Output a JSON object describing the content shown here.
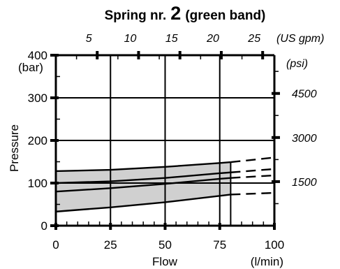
{
  "chart_data": {
    "type": "area",
    "title": {
      "prefix": "Spring nr.",
      "number": "2",
      "suffix": "(green band)"
    },
    "xlabel": "Flow",
    "xunit": "(l/min)",
    "ylabel": "Pressure",
    "yunit": "(bar)",
    "xlim": [
      0,
      100
    ],
    "ylim": [
      0,
      400
    ],
    "x_ticks": [
      0,
      25,
      50,
      75,
      100
    ],
    "y_ticks": [
      0,
      100,
      200,
      300,
      400
    ],
    "top_axis": {
      "unit": "(US gpm)",
      "ticks": [
        5,
        10,
        15,
        20,
        25
      ]
    },
    "right_axis": {
      "unit": "(psi)",
      "ticks": [
        1500,
        3000,
        4500
      ]
    },
    "grid_x": [
      25,
      50,
      75
    ],
    "grid_y": [
      100,
      200,
      300
    ],
    "band": {
      "fill": "#d0d0d0",
      "upper": {
        "x": [
          0,
          25,
          50,
          75,
          80
        ],
        "y": [
          128,
          131,
          138,
          147,
          149
        ]
      },
      "lower": {
        "x": [
          0,
          25,
          50,
          75,
          80
        ],
        "y": [
          33,
          43,
          55,
          70,
          73
        ]
      }
    },
    "series": [
      {
        "x": [
          0,
          25,
          50,
          75,
          80,
          100
        ],
        "y": [
          128,
          131,
          138,
          147,
          149,
          160
        ],
        "solid_until": 80
      },
      {
        "x": [
          0,
          25,
          50,
          75,
          80,
          100
        ],
        "y": [
          100,
          104,
          112,
          123,
          125,
          133
        ],
        "solid_until": 80
      },
      {
        "x": [
          0,
          25,
          50,
          75,
          80,
          100
        ],
        "y": [
          80,
          88,
          98,
          110,
          112,
          118
        ],
        "solid_until": 80
      },
      {
        "x": [
          0,
          25,
          50,
          75,
          80,
          100
        ],
        "y": [
          33,
          43,
          55,
          70,
          73,
          77
        ],
        "solid_until": 80
      }
    ],
    "band_edge_x": 80,
    "grid": true
  }
}
